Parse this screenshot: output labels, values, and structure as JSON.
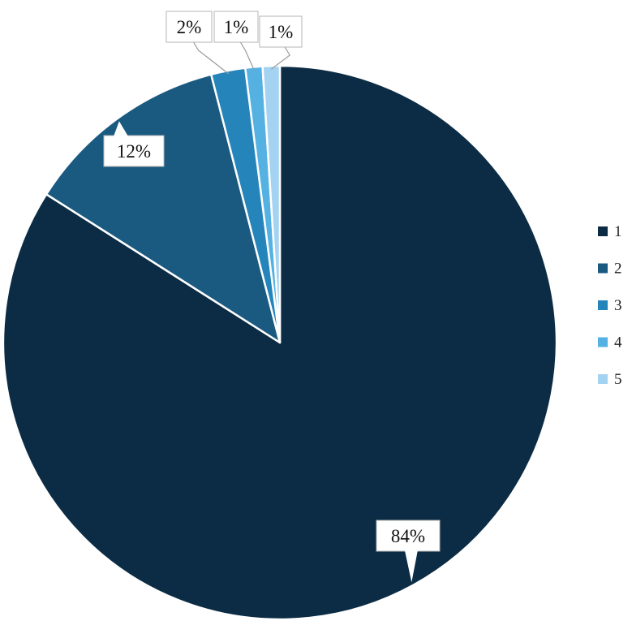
{
  "chart_data": {
    "type": "pie",
    "categories": [
      "1",
      "2",
      "3",
      "4",
      "5"
    ],
    "values": [
      84,
      12,
      2,
      1,
      1
    ],
    "data_labels": [
      "84%",
      "12%",
      "2%",
      "1%",
      "1%"
    ],
    "colors": [
      "#0b2c44",
      "#1a5a80",
      "#2585ba",
      "#55b1e2",
      "#a3d3f0"
    ],
    "start_angle": "12 o'clock",
    "direction": "clockwise",
    "legend_position": "right",
    "title": ""
  }
}
